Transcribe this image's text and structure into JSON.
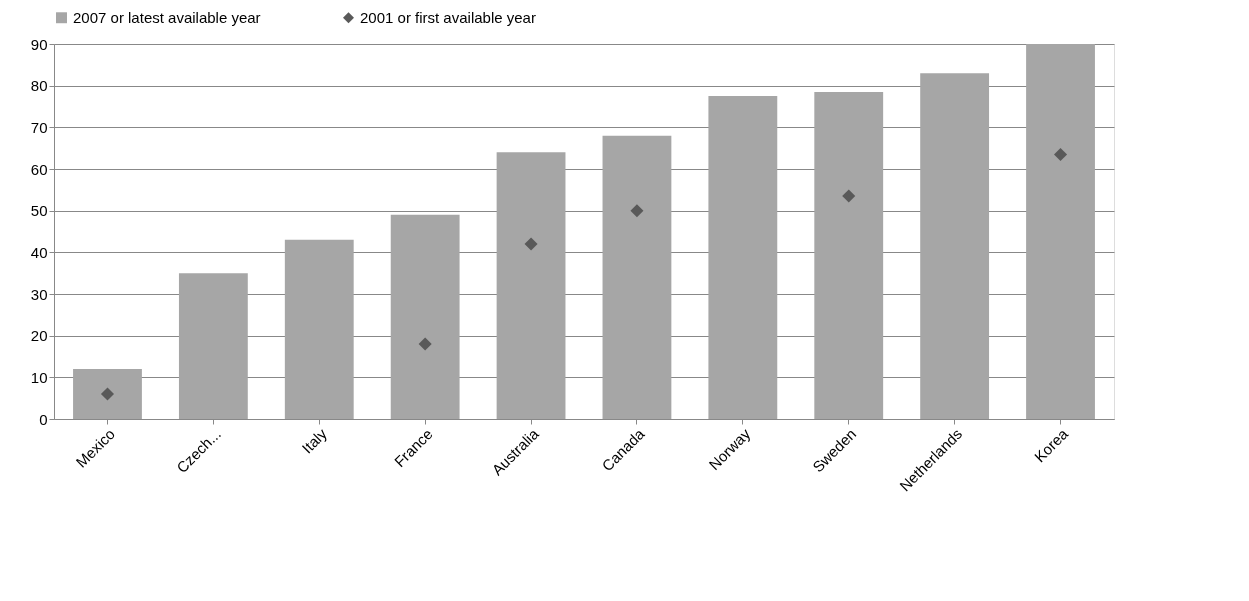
{
  "chart_data": {
    "type": "bar",
    "categories": [
      "Mexico",
      "Czech...",
      "Italy",
      "France",
      "Australia",
      "Canada",
      "Norway",
      "Sweden",
      "Netherlands",
      "Korea"
    ],
    "series": [
      {
        "name": "2007 or latest available year",
        "color": "#a6a6a6",
        "values": [
          12,
          35,
          43,
          49,
          64,
          68,
          77.5,
          78.5,
          83,
          90
        ]
      },
      {
        "name": "2001 or first available year",
        "type": "scatter",
        "marker": "diamond",
        "color": "#595959",
        "values": [
          6,
          null,
          null,
          18,
          42,
          50,
          null,
          53.5,
          null,
          63.5
        ]
      }
    ],
    "ylim": [
      0,
      90
    ],
    "yticks": [
      0,
      10,
      20,
      30,
      40,
      50,
      60,
      70,
      80,
      90
    ],
    "grid": "y",
    "legend": "top"
  }
}
